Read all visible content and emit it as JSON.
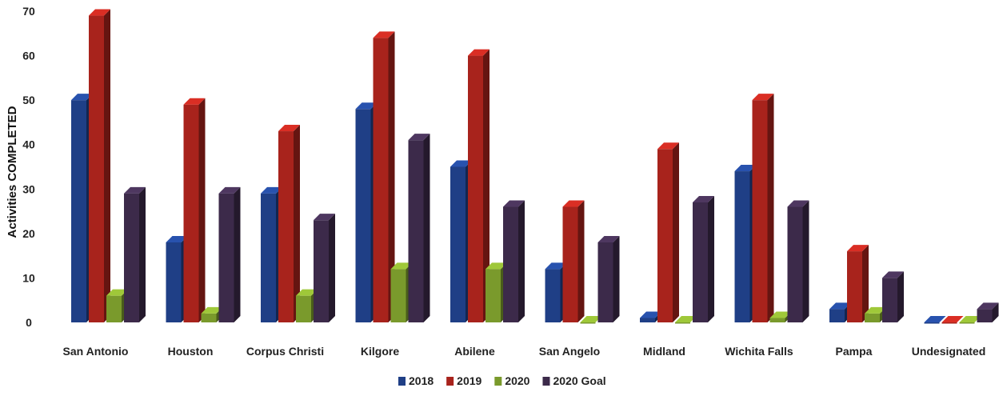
{
  "chart_data": {
    "type": "bar",
    "ylabel": "Activities COMPLETED",
    "xlabel": "",
    "ylim": [
      0,
      70
    ],
    "yticks": [
      "0",
      "10",
      "20",
      "30",
      "40",
      "50",
      "60",
      "70"
    ],
    "categories": [
      "San Antonio",
      "Houston",
      "Corpus Christi",
      "Kilgore",
      "Abilene",
      "San Angelo",
      "Midland",
      "Wichita Falls",
      "Pampa",
      "Undesignated"
    ],
    "series": [
      {
        "name": "2018",
        "color": "#1f3f86",
        "values": [
          50,
          18,
          29,
          48,
          35,
          12,
          1,
          34,
          3,
          0
        ]
      },
      {
        "name": "2019",
        "color": "#a8231c",
        "values": [
          69,
          49,
          43,
          64,
          60,
          26,
          39,
          50,
          16,
          0
        ]
      },
      {
        "name": "2020",
        "color": "#7a9a2c",
        "values": [
          6,
          2,
          6,
          12,
          12,
          0,
          0,
          1,
          2,
          0
        ]
      },
      {
        "name": "2020 Goal",
        "color": "#3c2a4a",
        "values": [
          29,
          29,
          23,
          41,
          26,
          18,
          27,
          26,
          10,
          3
        ]
      }
    ],
    "legend_position": "bottom-center",
    "grid": false,
    "style": "3d-clustered-column"
  }
}
